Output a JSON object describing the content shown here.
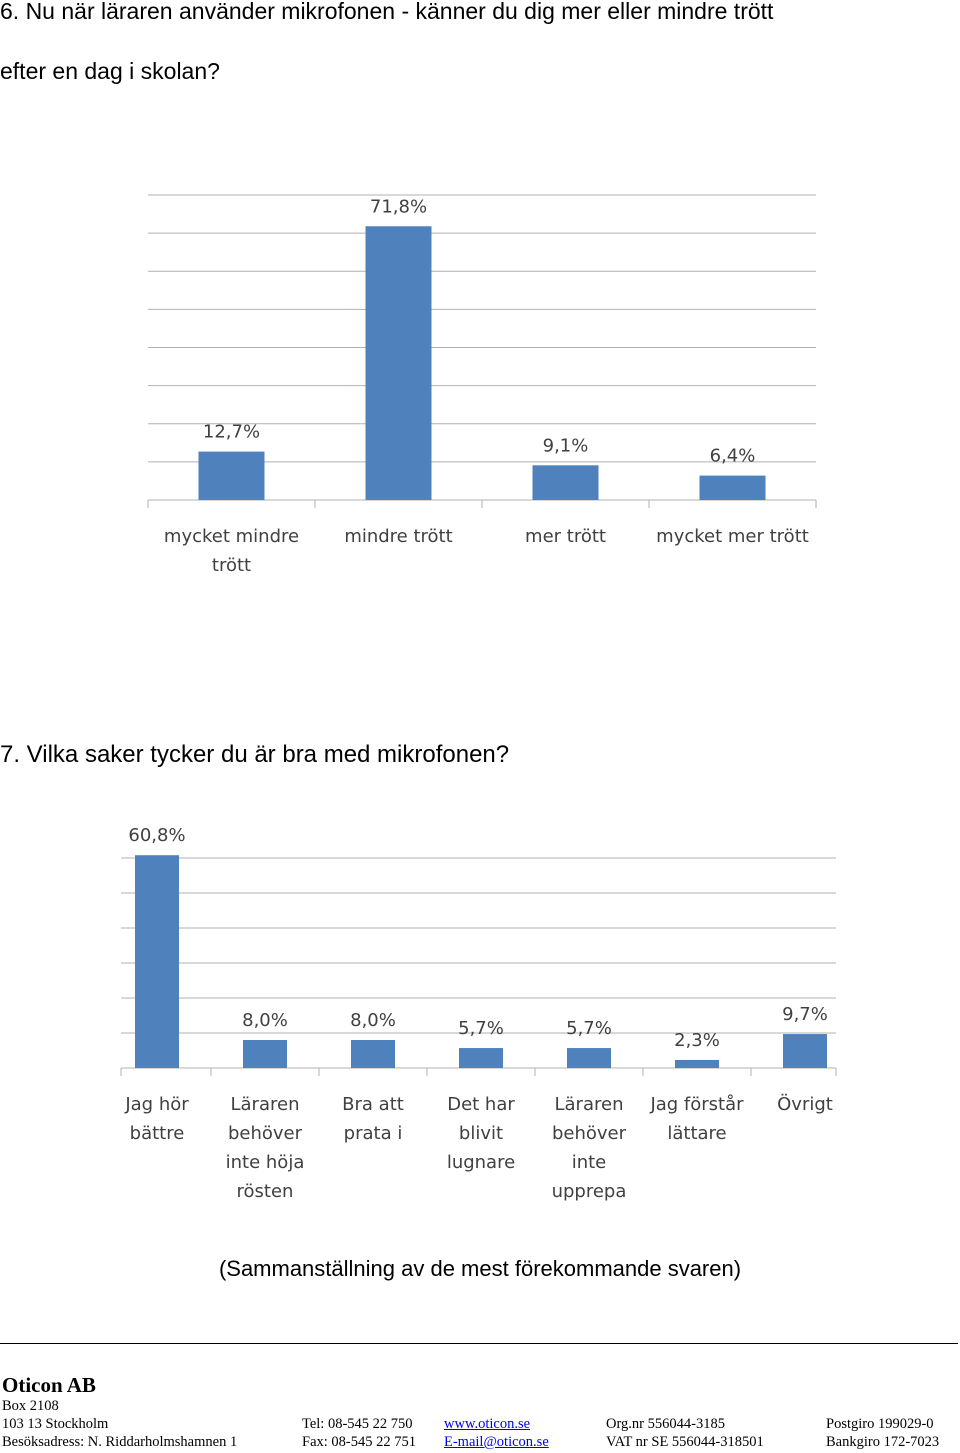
{
  "question_6": [
    "6. Nu när läraren använder mikrofonen - känner du dig mer eller mindre trött",
    "efter en dag i skolan?"
  ],
  "question_7": "7. Vilka saker tycker du är bra med mikrofonen?",
  "chart_data": [
    {
      "type": "bar",
      "categories": [
        "mycket mindre trött",
        "mindre trött",
        "mer trött",
        "mycket mer trött"
      ],
      "values": [
        12.7,
        71.8,
        9.1,
        6.4
      ],
      "value_labels": [
        "12,7%",
        "71,8%",
        "9,1%",
        "6,4%"
      ],
      "color": "#4f81bd",
      "ylim": [
        0,
        80
      ],
      "yticks": [
        0,
        10,
        20,
        30,
        40,
        50,
        60,
        70,
        80
      ],
      "grid": true,
      "tick_labels": false
    },
    {
      "type": "bar",
      "categories": [
        "Jag hör bättre",
        "Läraren behöver inte höja rösten",
        "Bra att prata i",
        "Det har blivit lugnare",
        "Läraren behöver inte upprepa",
        "Jag förstår lättare",
        "Övrigt"
      ],
      "values": [
        60.8,
        8.0,
        8.0,
        5.7,
        5.7,
        2.3,
        9.7
      ],
      "value_labels": [
        "60,8%",
        "8,0%",
        "8,0%",
        "5,7%",
        "5,7%",
        "2,3%",
        "9,7%"
      ],
      "color": "#4f81bd",
      "ylim": [
        0,
        60
      ],
      "yticks": [
        0,
        10,
        20,
        30,
        40,
        50,
        60
      ],
      "grid": true,
      "tick_labels": false
    }
  ],
  "note": "(Sammanställning av de mest förekommande svaren)",
  "footer": {
    "company": "Oticon AB",
    "rows": [
      [
        "Box 2108"
      ],
      [
        "103 13 Stockholm",
        "Tel: 08-545 22 750",
        "www.oticon.se",
        "Org.nr 556044-3185",
        "Postgiro 199029-0"
      ],
      [
        "Besöksadress: N. Riddarholmshamnen 1",
        "Fax: 08-545 22 751",
        "E-mail@oticon.se",
        "VAT nr SE 556044-318501",
        "Bankgiro 172-7023"
      ]
    ]
  }
}
